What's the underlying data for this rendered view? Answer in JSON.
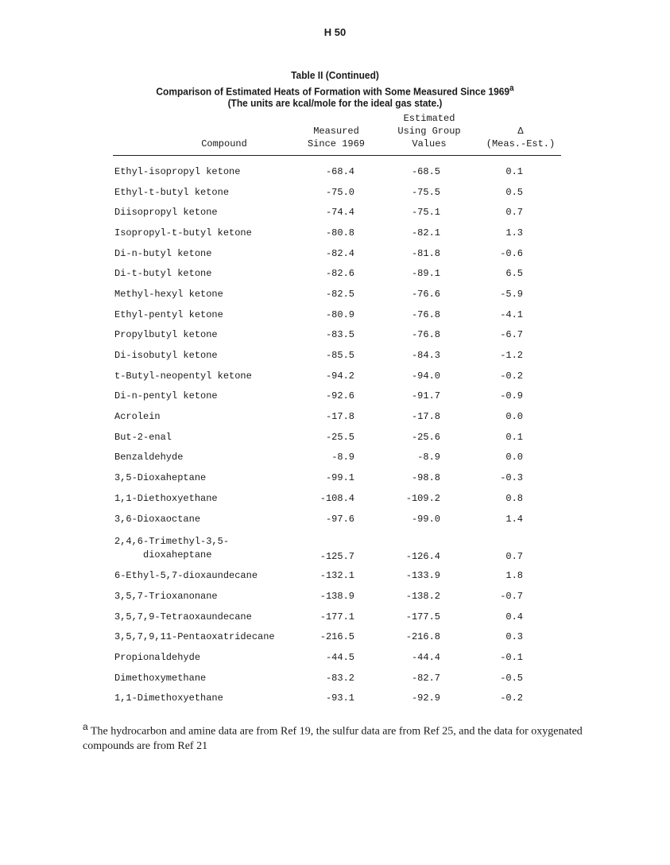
{
  "page_number": "H 50",
  "table": {
    "title": "Table II (Continued)",
    "subtitle": "Comparison of Estimated Heats of Formation with Some Measured Since 1969",
    "subtitle_footnote_mark": "a",
    "units_note": "(The units are kcal/mole for the ideal gas state.)",
    "headers": {
      "compound": "Compound",
      "measured": [
        "Measured",
        "Since 1969"
      ],
      "estimated": [
        "Estimated",
        "Using Group",
        "Values"
      ],
      "delta": [
        "Δ",
        "(Meas.-Est.)"
      ]
    },
    "rows": [
      {
        "compound": "Ethyl-isopropyl ketone",
        "measured": "-68.4",
        "estimated": "-68.5",
        "delta": "0.1"
      },
      {
        "compound": "Ethyl-t-butyl ketone",
        "measured": "-75.0",
        "estimated": "-75.5",
        "delta": "0.5"
      },
      {
        "compound": "Diisopropyl ketone",
        "measured": "-74.4",
        "estimated": "-75.1",
        "delta": "0.7"
      },
      {
        "compound": "Isopropyl-t-butyl ketone",
        "measured": "-80.8",
        "estimated": "-82.1",
        "delta": "1.3"
      },
      {
        "compound": "Di-n-butyl ketone",
        "measured": "-82.4",
        "estimated": "-81.8",
        "delta": "-0.6"
      },
      {
        "compound": "Di-t-butyl ketone",
        "measured": "-82.6",
        "estimated": "-89.1",
        "delta": "6.5"
      },
      {
        "compound": "Methyl-hexyl ketone",
        "measured": "-82.5",
        "estimated": "-76.6",
        "delta": "-5.9"
      },
      {
        "compound": "Ethyl-pentyl ketone",
        "measured": "-80.9",
        "estimated": "-76.8",
        "delta": "-4.1"
      },
      {
        "compound": "Propylbutyl ketone",
        "measured": "-83.5",
        "estimated": "-76.8",
        "delta": "-6.7"
      },
      {
        "compound": "Di-isobutyl ketone",
        "measured": "-85.5",
        "estimated": "-84.3",
        "delta": "-1.2"
      },
      {
        "compound": "t-Butyl-neopentyl ketone",
        "measured": "-94.2",
        "estimated": "-94.0",
        "delta": "-0.2"
      },
      {
        "compound": "Di-n-pentyl ketone",
        "measured": "-92.6",
        "estimated": "-91.7",
        "delta": "-0.9"
      },
      {
        "compound": "Acrolein",
        "measured": "-17.8",
        "estimated": "-17.8",
        "delta": "0.0"
      },
      {
        "compound": "But-2-enal",
        "measured": "-25.5",
        "estimated": "-25.6",
        "delta": "0.1"
      },
      {
        "compound": "Benzaldehyde",
        "measured": "-8.9",
        "estimated": "-8.9",
        "delta": "0.0"
      },
      {
        "compound": "3,5-Dioxaheptane",
        "measured": "-99.1",
        "estimated": "-98.8",
        "delta": "-0.3"
      },
      {
        "compound": "1,1-Diethoxyethane",
        "measured": "-108.4",
        "estimated": "-109.2",
        "delta": "0.8"
      },
      {
        "compound": "3,6-Dioxaoctane",
        "measured": "-97.6",
        "estimated": "-99.0",
        "delta": "1.4"
      },
      {
        "compound": "2,4,6-Trimethyl-3,5-\n     dioxaheptane",
        "measured": "-125.7",
        "estimated": "-126.4",
        "delta": "0.7"
      },
      {
        "compound": "6-Ethyl-5,7-dioxaundecane",
        "measured": "-132.1",
        "estimated": "-133.9",
        "delta": "1.8"
      },
      {
        "compound": "3,5,7-Trioxanonane",
        "measured": "-138.9",
        "estimated": "-138.2",
        "delta": "-0.7"
      },
      {
        "compound": "3,5,7,9-Tetraoxaundecane",
        "measured": "-177.1",
        "estimated": "-177.5",
        "delta": "0.4"
      },
      {
        "compound": "3,5,7,9,11-Pentaoxatridecane",
        "measured": "-216.5",
        "estimated": "-216.8",
        "delta": "0.3"
      },
      {
        "compound": "Propionaldehyde",
        "measured": "-44.5",
        "estimated": "-44.4",
        "delta": "-0.1"
      },
      {
        "compound": "Dimethoxymethane",
        "measured": "-83.2",
        "estimated": "-82.7",
        "delta": "-0.5"
      },
      {
        "compound": "1,1-Dimethoxyethane",
        "measured": "-93.1",
        "estimated": "-92.9",
        "delta": "-0.2"
      }
    ]
  },
  "footnote": {
    "mark": "a",
    "text": "The hydrocarbon and amine data are from Ref 19, the sulfur data are from Ref 25, and the data for oxygenated compounds are from Ref 21"
  }
}
